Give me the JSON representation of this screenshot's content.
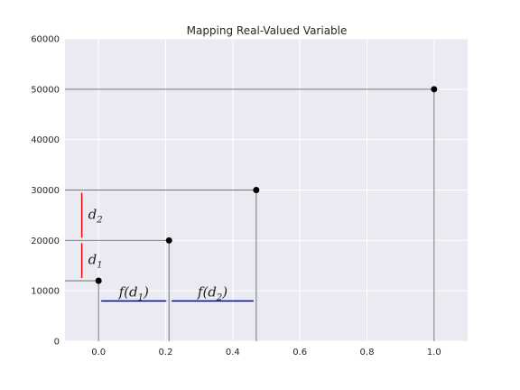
{
  "chart_data": {
    "type": "scatter",
    "title": "Mapping Real-Valued Variable",
    "xlabel": "",
    "ylabel": "",
    "xlim": [
      -0.1,
      1.1
    ],
    "ylim": [
      0,
      60000
    ],
    "x_ticks": [
      0.0,
      0.2,
      0.4,
      0.6,
      0.8,
      1.0
    ],
    "x_tick_labels": [
      "0.0",
      "0.2",
      "0.4",
      "0.6",
      "0.8",
      "1.0"
    ],
    "y_ticks": [
      0,
      10000,
      20000,
      30000,
      40000,
      50000,
      60000
    ],
    "y_tick_labels": [
      "0",
      "10000",
      "20000",
      "30000",
      "40000",
      "50000",
      "60000"
    ],
    "grid": true,
    "background": "#eaeaf2",
    "points": [
      {
        "x": 0.0,
        "y": 12000
      },
      {
        "x": 0.21,
        "y": 20000
      },
      {
        "x": 0.47,
        "y": 30000
      },
      {
        "x": 1.0,
        "y": 50000
      }
    ],
    "point_color": "#000000",
    "guide_color": "#777777",
    "annotations": {
      "d_segments": [
        {
          "main": "d",
          "sub": "1",
          "x": -0.05,
          "y_from": 12000,
          "y_to": 20000
        },
        {
          "main": "d",
          "sub": "2",
          "x": -0.05,
          "y_from": 20000,
          "y_to": 30000
        }
      ],
      "d_color": "#ff0000",
      "f_segments": [
        {
          "text_pre": "f(d",
          "sub": "1",
          "text_post": ")",
          "y": 8000,
          "x_from": 0.0,
          "x_to": 0.21
        },
        {
          "text_pre": "f(d",
          "sub": "2",
          "text_post": ")",
          "y": 8000,
          "x_from": 0.21,
          "x_to": 0.47
        }
      ],
      "f_color": "#0000cc"
    }
  }
}
